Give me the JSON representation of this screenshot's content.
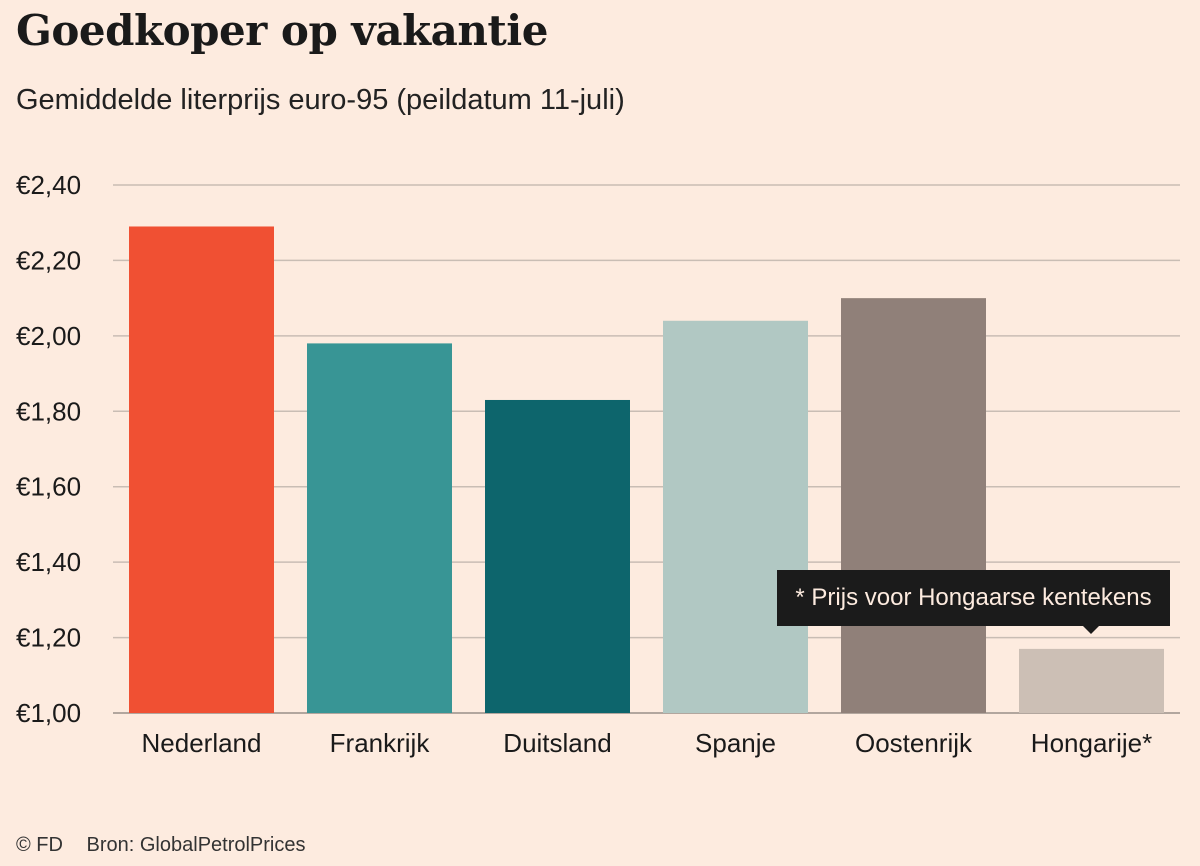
{
  "chart_data": {
    "type": "bar",
    "title": "Goedkoper op vakantie",
    "subtitle": "Gemiddelde literprijs euro-95 (peildatum 11-juli)",
    "categories": [
      "Nederland",
      "Frankrijk",
      "Duitsland",
      "Spanje",
      "Oostenrijk",
      "Hongarije*"
    ],
    "values": [
      2.29,
      1.98,
      1.83,
      2.04,
      2.1,
      1.17
    ],
    "colors": [
      "#f05033",
      "#389595",
      "#0d656c",
      "#b1c8c3",
      "#908079",
      "#ccbfb5"
    ],
    "yticks": [
      "€2,40",
      "€2,20",
      "€2,00",
      "€1,80",
      "€1,60",
      "€1,40",
      "€1,20",
      "€1,00"
    ],
    "ytick_values": [
      2.4,
      2.2,
      2.0,
      1.8,
      1.6,
      1.4,
      1.2,
      1.0
    ],
    "ylim": [
      1.0,
      2.4
    ],
    "xlabel": "",
    "ylabel": "",
    "grid": true,
    "annotation": "* Prijs voor Hongaarse kentekens"
  },
  "footer": {
    "copyright": "© FD",
    "source": "Bron: GlobalPetrolPrices"
  }
}
